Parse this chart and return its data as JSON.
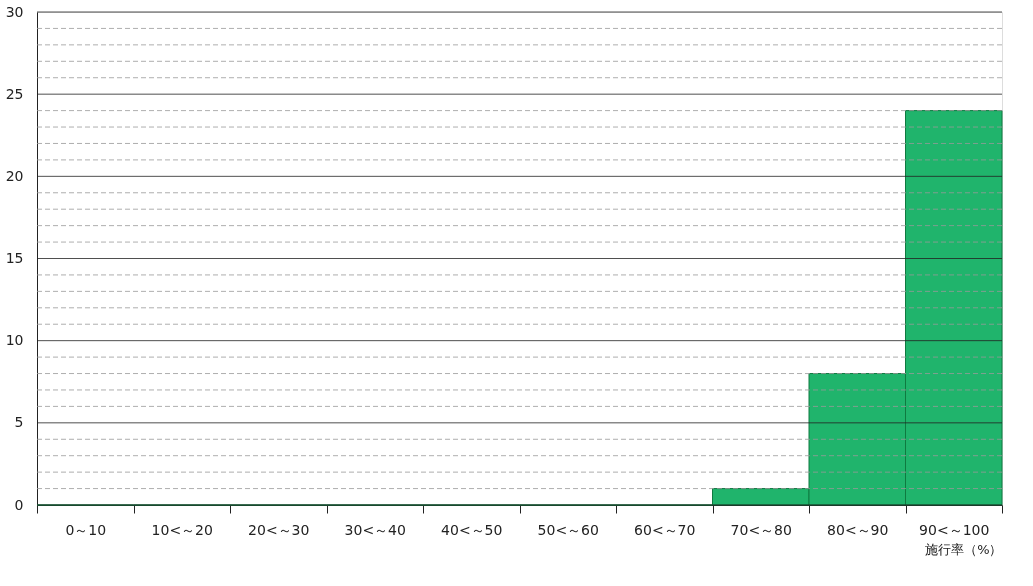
{
  "chart_data": {
    "type": "bar",
    "xlabel": "施行率（%）",
    "categories": [
      "0～10",
      "10<～20",
      "20<～30",
      "30<～40",
      "40<～50",
      "50<～60",
      "60<～70",
      "70<～80",
      "80<～90",
      "90<～100"
    ],
    "values": [
      0,
      0,
      0,
      0,
      0,
      0,
      0,
      1,
      8,
      24
    ],
    "color": "#20b46c",
    "ylim": [
      0,
      30
    ],
    "yticks": [
      0,
      {
        "value": 1,
        "label": null
      },
      {
        "value": 2,
        "label": null
      },
      {
        "value": 3,
        "label": null
      },
      {
        "value": 4,
        "label": null
      },
      5,
      {
        "value": 6,
        "label": null
      },
      {
        "value": 7,
        "label": null
      },
      {
        "value": 8,
        "label": null
      },
      {
        "value": 9,
        "label": null
      },
      10,
      {
        "value": 11,
        "label": null
      },
      {
        "value": 12,
        "label": null
      },
      {
        "value": 13,
        "label": null
      },
      {
        "value": 14,
        "label": null
      },
      15,
      {
        "value": 16,
        "label": null
      },
      {
        "value": 17,
        "label": null
      },
      {
        "value": 18,
        "label": null
      },
      {
        "value": 19,
        "label": null
      },
      20,
      {
        "value": 21,
        "label": null
      },
      {
        "value": 22,
        "label": null
      },
      {
        "value": 23,
        "label": null
      },
      {
        "value": 24,
        "label": null
      },
      25,
      {
        "value": 26,
        "label": null
      },
      {
        "value": 27,
        "label": null
      },
      {
        "value": 28,
        "label": null
      },
      {
        "value": 29,
        "label": null
      },
      30
    ],
    "grid": "y"
  }
}
